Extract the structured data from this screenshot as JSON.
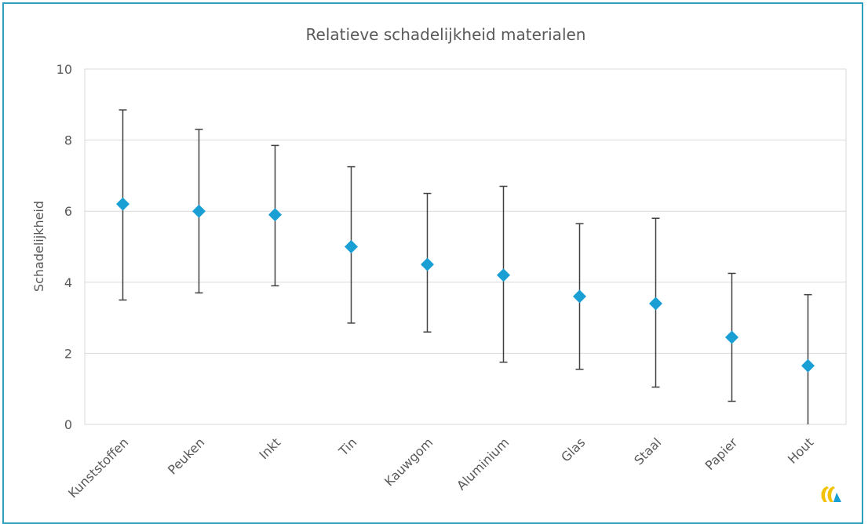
{
  "chart_data": {
    "type": "scatter",
    "title": "Relatieve schadelijkheid materialen",
    "xlabel": "",
    "ylabel": "Schadelijkheid",
    "ylim": [
      0,
      10
    ],
    "yticks": [
      0,
      2,
      4,
      6,
      8,
      10
    ],
    "grid": true,
    "legend": "none",
    "categories": [
      "Kunststoffen",
      "Peuken",
      "Inkt",
      "Tin",
      "Kauwgom",
      "Aluminium",
      "Glas",
      "Staal",
      "Papier",
      "Hout"
    ],
    "values": [
      6.2,
      6.0,
      5.9,
      5.0,
      4.5,
      4.2,
      3.6,
      3.4,
      2.45,
      1.65
    ],
    "error_low": [
      3.5,
      3.7,
      3.9,
      2.85,
      2.6,
      1.75,
      1.55,
      1.05,
      0.65,
      0.0
    ],
    "error_high": [
      8.85,
      8.3,
      7.85,
      7.25,
      6.5,
      6.7,
      5.65,
      5.8,
      4.25,
      3.65
    ],
    "colors": {
      "marker": "#1a9fd5",
      "errorbar": "#404040",
      "grid": "#d9d9d9",
      "text": "#595959",
      "frame": "#2e9fbd"
    }
  },
  "logo": {
    "icon": "logo-icon"
  }
}
